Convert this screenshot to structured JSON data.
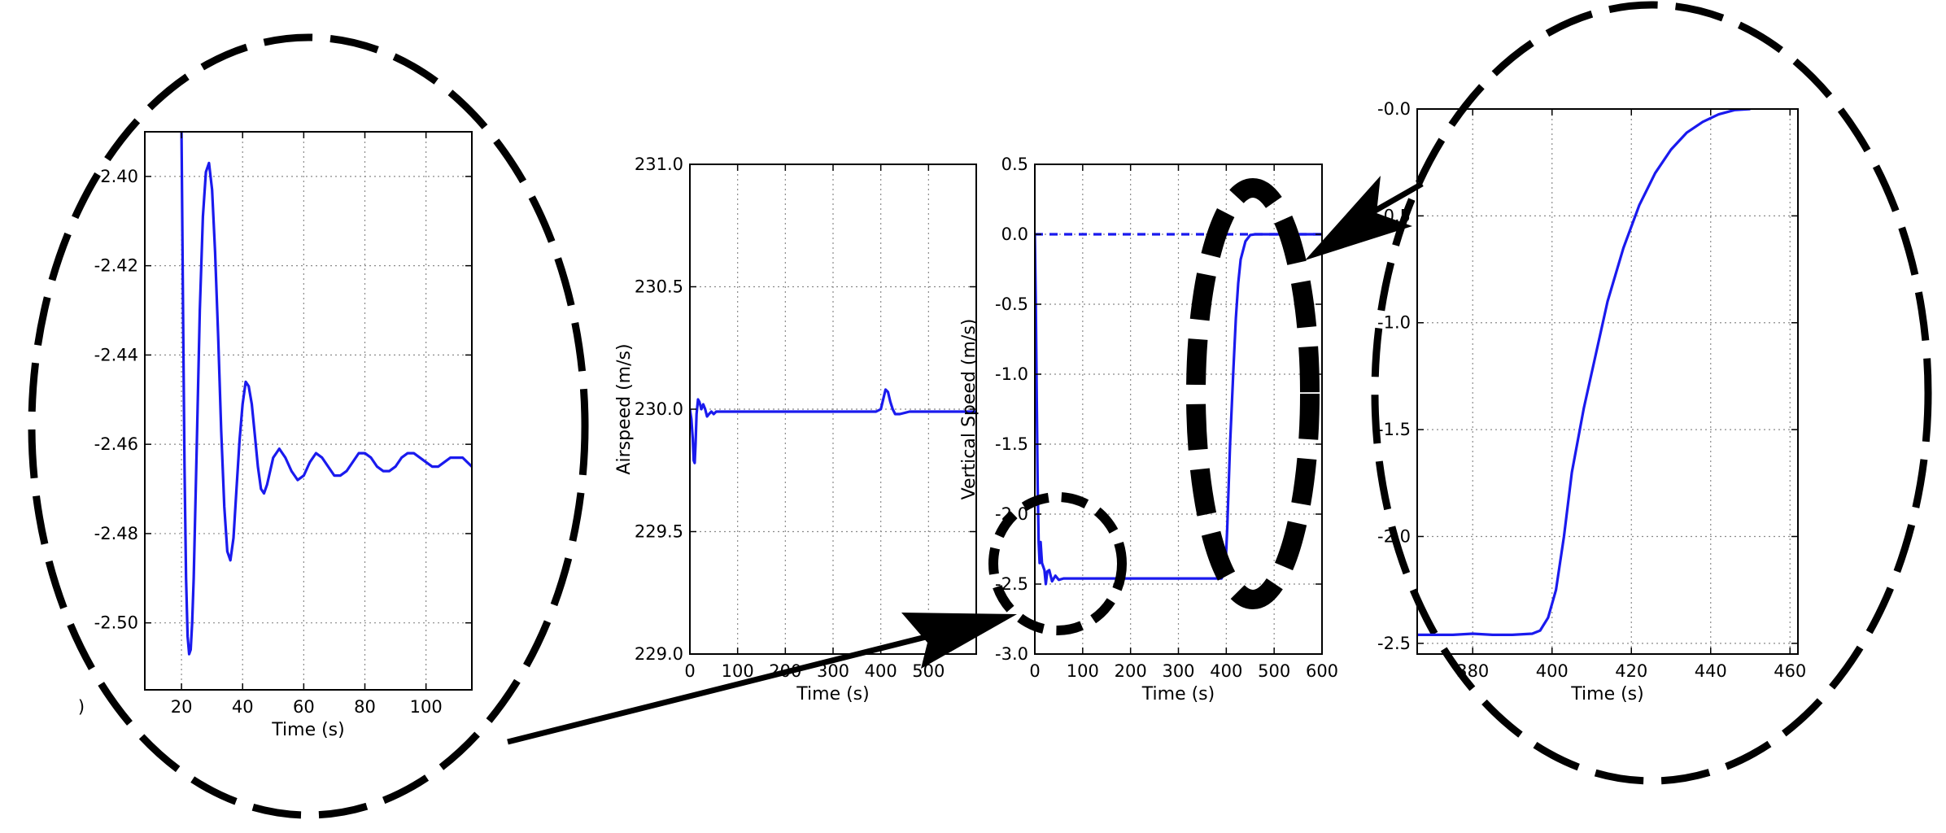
{
  "colors": {
    "series": "#1a1aee",
    "annotation": "#000000",
    "grid": "#8a8a8a"
  },
  "chart_data": [
    {
      "id": "zoom_left",
      "type": "line",
      "title": "",
      "xlabel": "Time (s)",
      "ylabel": "",
      "xlim": [
        8,
        115
      ],
      "ylim": [
        -2.515,
        -2.39
      ],
      "x_ticks": [
        20,
        40,
        60,
        80,
        100
      ],
      "x_tick_labels": [
        "20",
        "40",
        "60",
        "80",
        "100"
      ],
      "y_ticks": [
        -2.4,
        -2.42,
        -2.44,
        -2.46,
        -2.48,
        -2.5
      ],
      "y_tick_labels": [
        "-2.40",
        "-2.42",
        "-2.44",
        "-2.46",
        "-2.48",
        "-2.50"
      ],
      "partial_labels": [
        {
          "text": ")",
          "axis": "x",
          "value": 0
        }
      ],
      "grid": true,
      "series": [
        {
          "style": "solid",
          "x": [
            20,
            20.5,
            21,
            21.5,
            22,
            22.5,
            23,
            23.5,
            24,
            25,
            26,
            27,
            28,
            29,
            30,
            31,
            32,
            33,
            34,
            35,
            36,
            37,
            38,
            39,
            40,
            41,
            42,
            43,
            44,
            45,
            46,
            47,
            48,
            50,
            52,
            54,
            56,
            58,
            60,
            62,
            64,
            66,
            68,
            70,
            72,
            74,
            76,
            78,
            80,
            82,
            84,
            86,
            88,
            90,
            92,
            94,
            96,
            98,
            100,
            102,
            104,
            106,
            108,
            110,
            112,
            115
          ],
          "y": [
            -2.39,
            -2.43,
            -2.465,
            -2.49,
            -2.503,
            -2.507,
            -2.506,
            -2.5,
            -2.49,
            -2.46,
            -2.43,
            -2.409,
            -2.399,
            -2.397,
            -2.403,
            -2.417,
            -2.436,
            -2.457,
            -2.474,
            -2.484,
            -2.486,
            -2.481,
            -2.47,
            -2.459,
            -2.451,
            -2.446,
            -2.447,
            -2.451,
            -2.458,
            -2.465,
            -2.47,
            -2.471,
            -2.469,
            -2.463,
            -2.461,
            -2.463,
            -2.466,
            -2.468,
            -2.467,
            -2.464,
            -2.462,
            -2.463,
            -2.465,
            -2.467,
            -2.467,
            -2.466,
            -2.464,
            -2.462,
            -2.462,
            -2.463,
            -2.465,
            -2.466,
            -2.466,
            -2.465,
            -2.463,
            -2.462,
            -2.462,
            -2.463,
            -2.464,
            -2.465,
            -2.465,
            -2.464,
            -2.463,
            -2.463,
            -2.463,
            -2.465
          ]
        }
      ]
    },
    {
      "id": "airspeed",
      "type": "line",
      "title": "",
      "xlabel": "Time (s)",
      "ylabel": "Airspeed (m/s)",
      "xlim": [
        0,
        600
      ],
      "ylim": [
        229.0,
        231.0
      ],
      "x_ticks": [
        0,
        100,
        200,
        300,
        400,
        500
      ],
      "x_tick_labels": [
        "0",
        "100",
        "200",
        "300",
        "400",
        "500"
      ],
      "y_ticks": [
        229.0,
        229.5,
        230.0,
        230.5,
        231.0
      ],
      "y_tick_labels": [
        "229.0",
        "229.5",
        "230.0",
        "230.5",
        "231.0"
      ],
      "grid": true,
      "series": [
        {
          "style": "solid",
          "x": [
            0,
            3,
            6,
            8,
            10,
            12,
            14,
            17,
            20,
            24,
            28,
            32,
            36,
            40,
            45,
            50,
            55,
            60,
            80,
            100,
            150,
            200,
            250,
            300,
            350,
            390,
            400,
            405,
            410,
            415,
            420,
            425,
            430,
            440,
            460,
            500,
            550,
            600
          ],
          "y": [
            230.0,
            229.96,
            229.88,
            229.79,
            229.78,
            229.86,
            229.98,
            230.04,
            230.03,
            230.0,
            230.02,
            230.0,
            229.97,
            229.98,
            229.99,
            229.98,
            229.99,
            229.99,
            229.99,
            229.99,
            229.99,
            229.99,
            229.99,
            229.99,
            229.99,
            229.99,
            230.0,
            230.04,
            230.08,
            230.07,
            230.03,
            230.0,
            229.98,
            229.98,
            229.99,
            229.99,
            229.99,
            229.99
          ]
        }
      ]
    },
    {
      "id": "vertical_speed",
      "type": "line",
      "title": "",
      "xlabel": "Time (s)",
      "ylabel": "Vertical Speed (m/s)",
      "xlim": [
        0,
        600
      ],
      "ylim": [
        -3.0,
        0.5
      ],
      "x_ticks": [
        0,
        100,
        200,
        300,
        400,
        500,
        600
      ],
      "x_tick_labels": [
        "0",
        "100",
        "200",
        "300",
        "400",
        "500",
        "600"
      ],
      "y_ticks": [
        0.5,
        0.0,
        -0.5,
        -1.0,
        -1.5,
        -2.0,
        -2.5,
        -3.0
      ],
      "y_tick_labels": [
        "0.5",
        "0.0",
        "-0.5",
        "-1.0",
        "-1.5",
        "-2.0",
        "-2.5",
        "-3.0"
      ],
      "grid": true,
      "series": [
        {
          "style": "solid",
          "x": [
            0,
            2,
            4,
            6,
            8,
            10,
            12,
            15,
            20,
            23,
            26,
            30,
            36,
            43,
            50,
            60,
            100,
            200,
            300,
            390,
            398,
            402,
            408,
            415,
            420,
            425,
            430,
            440,
            450,
            460,
            500,
            550,
            600
          ],
          "y": [
            0.0,
            -0.5,
            -1.2,
            -1.8,
            -2.2,
            -2.35,
            -2.2,
            -2.35,
            -2.4,
            -2.5,
            -2.41,
            -2.4,
            -2.48,
            -2.44,
            -2.47,
            -2.46,
            -2.46,
            -2.46,
            -2.46,
            -2.46,
            -2.4,
            -2.1,
            -1.5,
            -0.95,
            -0.6,
            -0.35,
            -0.18,
            -0.05,
            -0.005,
            0.0,
            0.0,
            0.0,
            0.0
          ]
        },
        {
          "style": "dashed",
          "x": [
            0,
            600
          ],
          "y": [
            0.0,
            0.0
          ]
        }
      ]
    },
    {
      "id": "zoom_right",
      "type": "line",
      "title": "",
      "xlabel": "Time (s)",
      "ylabel": "",
      "xlim": [
        366,
        462
      ],
      "ylim": [
        -2.55,
        0.0
      ],
      "x_ticks": [
        380,
        400,
        420,
        440,
        460
      ],
      "x_tick_labels": [
        "380",
        "400",
        "420",
        "440",
        "460"
      ],
      "y_ticks": [
        -0.5,
        -1.0,
        -1.5,
        -2.0,
        -2.5
      ],
      "y_tick_labels": [
        "-0.5",
        "-1.0",
        "-1.5",
        "-2.0",
        "-2.5"
      ],
      "partial_labels": [
        {
          "text": "-0.0",
          "axis": "y",
          "value": 0.0
        }
      ],
      "grid": true,
      "series": [
        {
          "style": "solid",
          "x": [
            366,
            375,
            380,
            385,
            390,
            395,
            397,
            399,
            401,
            403,
            405,
            408,
            411,
            414,
            418,
            422,
            426,
            430,
            434,
            438,
            442,
            446,
            450
          ],
          "y": [
            -2.46,
            -2.46,
            -2.455,
            -2.46,
            -2.46,
            -2.455,
            -2.44,
            -2.38,
            -2.25,
            -2.0,
            -1.7,
            -1.4,
            -1.15,
            -0.9,
            -0.65,
            -0.45,
            -0.3,
            -0.19,
            -0.11,
            -0.06,
            -0.025,
            -0.005,
            0.0
          ]
        }
      ]
    }
  ]
}
